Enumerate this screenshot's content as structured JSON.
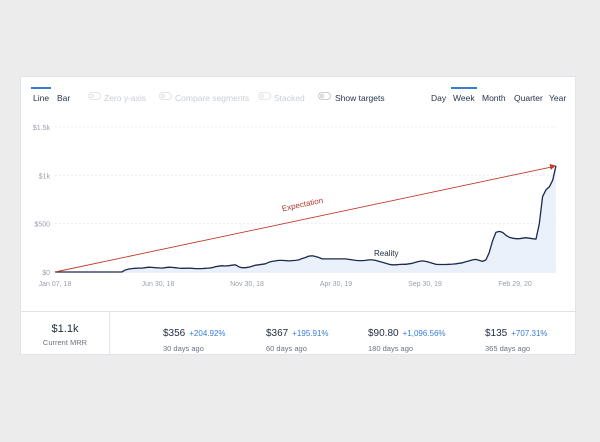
{
  "toolbar": {
    "chart_types": [
      "Line",
      "Bar"
    ],
    "toggles": [
      {
        "label": "Zero y-axis",
        "enabled": false
      },
      {
        "label": "Compare segments",
        "enabled": false
      },
      {
        "label": "Stacked",
        "enabled": false
      },
      {
        "label": "Show targets",
        "enabled": true
      }
    ],
    "periods": [
      "Day",
      "Week",
      "Month",
      "Quarter",
      "Year"
    ],
    "active_chart_type": "Line",
    "active_period": "Week"
  },
  "chart_data": {
    "type": "line",
    "y_ticks": [
      "$0",
      "$500",
      "$1k",
      "$1.5k"
    ],
    "x_ticks": [
      "Jan 07, 18",
      "Jun 30, 18",
      "Nov 30, 18",
      "Apr 30, 19",
      "Sep 30, 19",
      "Feb 29, 20"
    ],
    "ylim": [
      0,
      1500
    ],
    "grid": true,
    "series": [
      {
        "name": "Reality",
        "color": "#1c2b4a",
        "fill": "#e6eefa",
        "values": [
          0,
          0,
          0,
          0,
          0,
          0,
          0,
          0,
          0,
          0,
          0,
          0,
          0,
          0,
          0,
          0,
          0,
          0,
          0,
          0,
          0,
          20,
          30,
          35,
          38,
          40,
          40,
          45,
          50,
          48,
          45,
          42,
          40,
          45,
          50,
          48,
          45,
          40,
          38,
          38,
          40,
          38,
          35,
          35,
          35,
          38,
          40,
          45,
          55,
          60,
          65,
          62,
          65,
          70,
          75,
          55,
          45,
          45,
          50,
          60,
          70,
          75,
          80,
          85,
          100,
          110,
          115,
          120,
          120,
          118,
          115,
          118,
          120,
          125,
          140,
          150,
          165,
          168,
          160,
          150,
          135,
          135,
          135,
          135,
          135,
          135,
          135,
          135,
          130,
          125,
          120,
          118,
          118,
          120,
          125,
          125,
          120,
          110,
          100,
          90,
          80,
          75,
          75,
          78,
          80,
          80,
          85,
          90,
          100,
          110,
          115,
          110,
          100,
          90,
          80,
          78,
          78,
          78,
          80,
          82,
          85,
          90,
          95,
          105,
          115,
          125,
          130,
          120,
          110,
          125,
          200,
          320,
          410,
          420,
          410,
          380,
          360,
          350,
          345,
          345,
          350,
          355,
          350,
          345,
          340,
          500,
          780,
          850,
          880,
          950,
          1100
        ]
      },
      {
        "name": "Expectation",
        "color": "#c0392b",
        "values": [
          0,
          1100
        ]
      }
    ],
    "annotations": [
      "Expectation",
      "Reality"
    ]
  },
  "footer": {
    "current": {
      "value": "$1.1k",
      "label": "Current MRR"
    },
    "stats": [
      {
        "value": "$356",
        "change": "+204.92%",
        "label": "30 days ago"
      },
      {
        "value": "$367",
        "change": "+195.91%",
        "label": "60 days ago"
      },
      {
        "value": "$90.80",
        "change": "+1,096.56%",
        "label": "180 days ago"
      },
      {
        "value": "$135",
        "change": "+707.31%",
        "label": "365 days ago"
      }
    ]
  }
}
